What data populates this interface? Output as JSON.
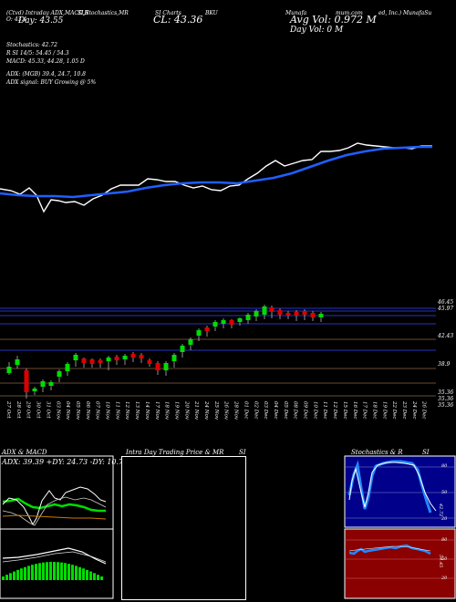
{
  "header": {
    "line1_left": "(Ctvd) Intraday ADX,MACD,R",
    "line1_mid": "SI,Stochastics,MR",
    "line1_mid2": "SI Charts",
    "symbol": "BKU",
    "line1_right": "Munafa",
    "line1_right2": "mum.com",
    "line1_tail": "ed, Inc.) MunafaSu",
    "open_label": "O: 43.4",
    "day_label": "Day: 43.55",
    "close_label": "CL: 43.36",
    "avg_vol_label": "Avg Vol: 0.972  M",
    "day_vol_label": "Day Vol: 0   M"
  },
  "stats": {
    "stochastics": "Stochastics: 42.72",
    "rsi": "R            SI 14/5: 54.45 / 54.3",
    "macd": "MACD: 45.33, 44.28, 1.05 D",
    "adx": "ADX:                 (MGB) 39.4,  24.7,  10.8",
    "adx_signal": "ADX  signal:                   BUY Growing @ 5%"
  },
  "price_axis": {
    "labels": [
      "46.45",
      "45.97",
      "42.43",
      "38.9",
      "35.36",
      "35.36",
      "35.36"
    ]
  },
  "date_labels": [
    "27 Oct",
    "28 Oct",
    "29 Oct",
    "30 Oct",
    "31 Oct",
    "03 Nov",
    "04 Nov",
    "05 Nov",
    "06 Nov",
    "07 Nov",
    "10 Nov",
    "11 Nov",
    "12 Nov",
    "13 Nov",
    "14 Nov",
    "17 Nov",
    "18 Nov",
    "19 Nov",
    "20 Nov",
    "21 Nov",
    "24 Nov",
    "25 Nov",
    "26 Nov",
    "28 Nov",
    "01 Dec",
    "02 Dec",
    "03 Dec",
    "04 Dec",
    "05 Dec",
    "08 Dec",
    "09 Dec",
    "10 Dec",
    "11 Dec",
    "12 Dec",
    "15 Dec",
    "16 Dec",
    "17 Dec",
    "18 Dec",
    "19 Dec",
    "22 Dec",
    "23 Dec",
    "24 Dec",
    "26 Dec"
  ],
  "panels": {
    "adx_title": "ADX  & MACD",
    "adx_text": "ADX: 39.39 +DY: 24.73 -DY: 10.75",
    "intra_title": "Intra  Day Trading Price  & MR",
    "intra_title2": "SI",
    "stoch_title": "Stochastics & R",
    "stoch_title2": "SI",
    "stoch_ticks": [
      "80",
      "50",
      "20"
    ],
    "stoch_value": "42.72",
    "rsi_ticks": [
      "80",
      "50",
      "20"
    ],
    "rsi_value": "54.45"
  },
  "colors": {
    "up": "#00dd00",
    "down": "#dd0000",
    "ma": "#1f5fff",
    "price_line": "#ffffff",
    "stoch_bg": "#00008b",
    "rsi_bg": "#8b0000"
  }
}
